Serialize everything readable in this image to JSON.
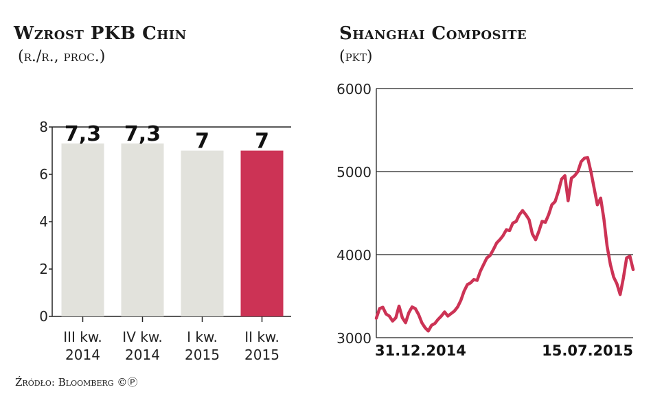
{
  "source": "Źródło: Bloomberg ©Ⓟ",
  "chart_data": [
    {
      "type": "bar",
      "title": "Wzrost PKB Chin",
      "subtitle": "(r./r., proc.)",
      "categories": [
        [
          "III kw.",
          "2014"
        ],
        [
          "IV kw.",
          "2014"
        ],
        [
          "I kw.",
          "2015"
        ],
        [
          "II kw.",
          "2015"
        ]
      ],
      "values": [
        7.3,
        7.3,
        7.0,
        7.0
      ],
      "value_labels": [
        "7,3",
        "7,3",
        "7",
        "7"
      ],
      "yticks": [
        0,
        2,
        4,
        6,
        8
      ],
      "ylim": [
        0,
        8
      ],
      "bar_colors": [
        "#e2e2dc",
        "#e2e2dc",
        "#e2e2dc",
        "#cc3355"
      ],
      "grid": false
    },
    {
      "type": "line",
      "title": "Shanghai Composite",
      "subtitle": "(pkt)",
      "x_start_label": "31.12.2014",
      "x_end_label": "15.07.2015",
      "yticks": [
        3000,
        4000,
        5000,
        6000
      ],
      "ylim": [
        3000,
        6000
      ],
      "grid": true,
      "line_color": "#cc3355",
      "values": [
        3235,
        3350,
        3366,
        3285,
        3260,
        3200,
        3240,
        3380,
        3240,
        3180,
        3300,
        3370,
        3350,
        3280,
        3180,
        3120,
        3080,
        3150,
        3170,
        3220,
        3260,
        3310,
        3260,
        3290,
        3320,
        3370,
        3450,
        3560,
        3640,
        3660,
        3700,
        3690,
        3800,
        3880,
        3960,
        3990,
        4060,
        4140,
        4180,
        4230,
        4300,
        4290,
        4380,
        4400,
        4480,
        4530,
        4480,
        4420,
        4250,
        4180,
        4280,
        4400,
        4390,
        4480,
        4600,
        4640,
        4760,
        4910,
        4950,
        4650,
        4920,
        4950,
        5000,
        5120,
        5160,
        5170,
        5000,
        4800,
        4600,
        4680,
        4430,
        4100,
        3880,
        3730,
        3650,
        3520,
        3720,
        3960,
        3980,
        3820
      ]
    }
  ]
}
